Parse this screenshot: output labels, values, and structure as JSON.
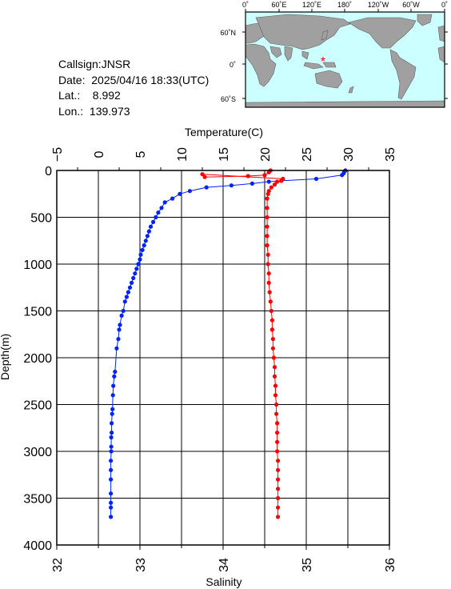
{
  "info": {
    "callsign": "Callsign:JNSR",
    "date": "Date:  2025/04/16 18:33(UTC)",
    "lat": "Lat.:    8.992",
    "lon": "Lon.:  139.973"
  },
  "map": {
    "top_labels": [
      "0˚",
      "60˚E",
      "120˚E",
      "180˚",
      "120˚W",
      "60˚W",
      "0˚"
    ],
    "side_labels": [
      "60˚N",
      "0˚",
      "60˚S"
    ],
    "station_marker": "*",
    "ocean_color": "#ccffff",
    "land_color": "#a0a0a0"
  },
  "chart_data": {
    "type": "line",
    "ylabel": "Depth(m)",
    "y_ticks": [
      "0",
      "500",
      "1000",
      "1500",
      "2000",
      "2500",
      "3000",
      "3500",
      "4000"
    ],
    "ylim": [
      0,
      4000
    ],
    "top_axis": {
      "label": "Temperature(C)",
      "ticks": [
        "−5",
        "0",
        "5",
        "10",
        "15",
        "20",
        "25",
        "30",
        "35"
      ],
      "range": [
        -5,
        35
      ]
    },
    "bottom_axis": {
      "label": "Salinity",
      "ticks": [
        "32",
        "33",
        "34",
        "35",
        "36"
      ],
      "range": [
        32,
        36
      ]
    },
    "grid": true,
    "series": [
      {
        "axis": "top",
        "color": "#0022ff",
        "points": [
          [
            29.7,
            0
          ],
          [
            29.6,
            10
          ],
          [
            29.5,
            30
          ],
          [
            29.3,
            50
          ],
          [
            26.2,
            90
          ],
          [
            22.0,
            110
          ],
          [
            20.5,
            120
          ],
          [
            18.5,
            140
          ],
          [
            16.0,
            160
          ],
          [
            13.0,
            180
          ],
          [
            11.0,
            220
          ],
          [
            9.8,
            250
          ],
          [
            8.9,
            300
          ],
          [
            8.0,
            340
          ],
          [
            7.6,
            400
          ],
          [
            7.2,
            450
          ],
          [
            6.9,
            500
          ],
          [
            6.6,
            550
          ],
          [
            6.3,
            600
          ],
          [
            6.1,
            650
          ],
          [
            5.9,
            700
          ],
          [
            5.7,
            750
          ],
          [
            5.5,
            800
          ],
          [
            5.3,
            850
          ],
          [
            5.1,
            900
          ],
          [
            5.0,
            950
          ],
          [
            4.8,
            1000
          ],
          [
            4.6,
            1050
          ],
          [
            4.4,
            1100
          ],
          [
            4.2,
            1150
          ],
          [
            4.0,
            1200
          ],
          [
            3.8,
            1250
          ],
          [
            3.6,
            1300
          ],
          [
            3.4,
            1350
          ],
          [
            3.2,
            1400
          ],
          [
            3.0,
            1500
          ],
          [
            2.8,
            1550
          ],
          [
            2.6,
            1650
          ],
          [
            2.5,
            1700
          ],
          [
            2.4,
            1800
          ],
          [
            2.2,
            1900
          ],
          [
            2.0,
            2150
          ],
          [
            1.9,
            2200
          ],
          [
            1.8,
            2300
          ],
          [
            1.75,
            2400
          ],
          [
            1.7,
            2550
          ],
          [
            1.65,
            2600
          ],
          [
            1.6,
            2700
          ],
          [
            1.6,
            2800
          ],
          [
            1.55,
            2850
          ],
          [
            1.55,
            2950
          ],
          [
            1.55,
            3000
          ],
          [
            1.5,
            3100
          ],
          [
            1.5,
            3200
          ],
          [
            1.5,
            3300
          ],
          [
            1.5,
            3450
          ],
          [
            1.5,
            3550
          ],
          [
            1.5,
            3600
          ],
          [
            1.5,
            3700
          ]
        ]
      },
      {
        "axis": "bottom",
        "color": "#ff0000",
        "points": [
          [
            34.57,
            0
          ],
          [
            34.55,
            20
          ],
          [
            34.5,
            50
          ],
          [
            34.3,
            60
          ],
          [
            33.78,
            70
          ],
          [
            33.75,
            40
          ],
          [
            34.72,
            90
          ],
          [
            34.7,
            110
          ],
          [
            34.65,
            120
          ],
          [
            34.62,
            150
          ],
          [
            34.58,
            180
          ],
          [
            34.55,
            220
          ],
          [
            34.54,
            250
          ],
          [
            34.53,
            300
          ],
          [
            34.53,
            400
          ],
          [
            34.53,
            500
          ],
          [
            34.53,
            600
          ],
          [
            34.53,
            700
          ],
          [
            34.53,
            800
          ],
          [
            34.54,
            900
          ],
          [
            34.54,
            1000
          ],
          [
            34.55,
            1100
          ],
          [
            34.55,
            1200
          ],
          [
            34.56,
            1300
          ],
          [
            34.57,
            1400
          ],
          [
            34.58,
            1500
          ],
          [
            34.59,
            1600
          ],
          [
            34.59,
            1700
          ],
          [
            34.6,
            1800
          ],
          [
            34.6,
            1900
          ],
          [
            34.61,
            2000
          ],
          [
            34.62,
            2100
          ],
          [
            34.62,
            2200
          ],
          [
            34.63,
            2300
          ],
          [
            34.63,
            2400
          ],
          [
            34.64,
            2500
          ],
          [
            34.64,
            2600
          ],
          [
            34.65,
            2700
          ],
          [
            34.65,
            2800
          ],
          [
            34.65,
            2900
          ],
          [
            34.65,
            3000
          ],
          [
            34.66,
            3100
          ],
          [
            34.66,
            3200
          ],
          [
            34.66,
            3300
          ],
          [
            34.66,
            3400
          ],
          [
            34.66,
            3500
          ],
          [
            34.66,
            3600
          ],
          [
            34.66,
            3700
          ]
        ]
      }
    ]
  }
}
